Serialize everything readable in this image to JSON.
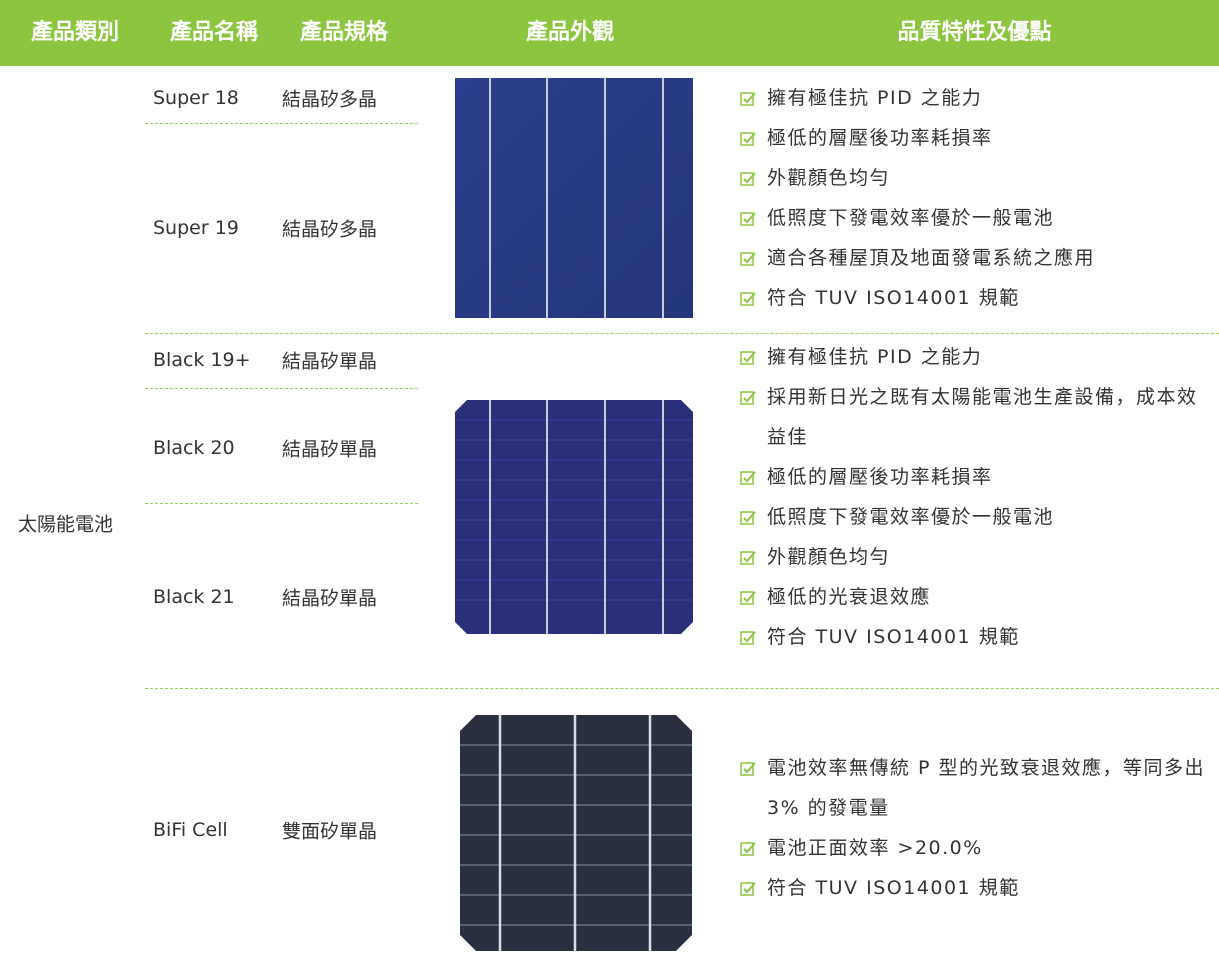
{
  "table": {
    "headers": [
      "產品類別",
      "產品名稱",
      "產品規格",
      "產品外觀",
      "品質特性及優點"
    ],
    "category": "太陽能電池",
    "groups": [
      {
        "products": [
          {
            "name": "Super 18",
            "spec": "結晶矽多晶"
          },
          {
            "name": "Super 19",
            "spec": "結晶矽多晶"
          }
        ],
        "features": [
          "擁有極佳抗 PID 之能力",
          "極低的層壓後功率耗損率",
          "外觀顏色均勻",
          "低照度下發電效率優於一般電池",
          "適合各種屋頂及地面發電系統之應用",
          "符合 TUV ISO14001 規範"
        ]
      },
      {
        "products": [
          {
            "name": "Black 19+",
            "spec": "結晶矽單晶"
          },
          {
            "name": "Black 20",
            "spec": "結晶矽單晶"
          },
          {
            "name": "Black 21",
            "spec": "結晶矽單晶"
          }
        ],
        "features": [
          "擁有極佳抗 PID 之能力",
          "採用新日光之既有太陽能電池生產設備，成本效益佳",
          "極低的層壓後功率耗損率",
          "低照度下發電效率優於一般電池",
          "外觀顏色均勻",
          "極低的光衰退效應",
          "符合 TUV ISO14001 規範"
        ]
      },
      {
        "products": [
          {
            "name": "BiFi Cell",
            "spec": "雙面矽單晶"
          }
        ],
        "features": [
          "電池效率無傳統 P 型的光致衰退效應，等同多出 3% 的發電量",
          "電池正面效率 >20.0%",
          "符合 TUV ISO14001 規範"
        ]
      }
    ]
  }
}
